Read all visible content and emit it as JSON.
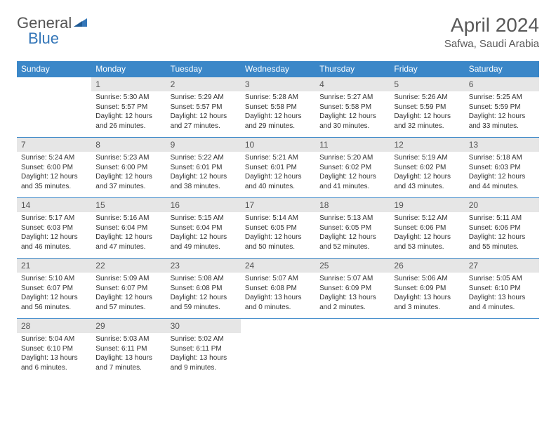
{
  "logo": {
    "text_general": "General",
    "text_blue": "Blue"
  },
  "title": "April 2024",
  "location": "Safwa, Saudi Arabia",
  "colors": {
    "header_bg": "#3b87c8",
    "header_text": "#ffffff",
    "daynum_bg": "#e6e6e6",
    "border": "#3b87c8",
    "logo_gray": "#555555",
    "logo_blue": "#3476b8"
  },
  "day_headers": [
    "Sunday",
    "Monday",
    "Tuesday",
    "Wednesday",
    "Thursday",
    "Friday",
    "Saturday"
  ],
  "weeks": [
    [
      null,
      {
        "n": "1",
        "sr": "5:30 AM",
        "ss": "5:57 PM",
        "dl": "12 hours and 26 minutes."
      },
      {
        "n": "2",
        "sr": "5:29 AM",
        "ss": "5:57 PM",
        "dl": "12 hours and 27 minutes."
      },
      {
        "n": "3",
        "sr": "5:28 AM",
        "ss": "5:58 PM",
        "dl": "12 hours and 29 minutes."
      },
      {
        "n": "4",
        "sr": "5:27 AM",
        "ss": "5:58 PM",
        "dl": "12 hours and 30 minutes."
      },
      {
        "n": "5",
        "sr": "5:26 AM",
        "ss": "5:59 PM",
        "dl": "12 hours and 32 minutes."
      },
      {
        "n": "6",
        "sr": "5:25 AM",
        "ss": "5:59 PM",
        "dl": "12 hours and 33 minutes."
      }
    ],
    [
      {
        "n": "7",
        "sr": "5:24 AM",
        "ss": "6:00 PM",
        "dl": "12 hours and 35 minutes."
      },
      {
        "n": "8",
        "sr": "5:23 AM",
        "ss": "6:00 PM",
        "dl": "12 hours and 37 minutes."
      },
      {
        "n": "9",
        "sr": "5:22 AM",
        "ss": "6:01 PM",
        "dl": "12 hours and 38 minutes."
      },
      {
        "n": "10",
        "sr": "5:21 AM",
        "ss": "6:01 PM",
        "dl": "12 hours and 40 minutes."
      },
      {
        "n": "11",
        "sr": "5:20 AM",
        "ss": "6:02 PM",
        "dl": "12 hours and 41 minutes."
      },
      {
        "n": "12",
        "sr": "5:19 AM",
        "ss": "6:02 PM",
        "dl": "12 hours and 43 minutes."
      },
      {
        "n": "13",
        "sr": "5:18 AM",
        "ss": "6:03 PM",
        "dl": "12 hours and 44 minutes."
      }
    ],
    [
      {
        "n": "14",
        "sr": "5:17 AM",
        "ss": "6:03 PM",
        "dl": "12 hours and 46 minutes."
      },
      {
        "n": "15",
        "sr": "5:16 AM",
        "ss": "6:04 PM",
        "dl": "12 hours and 47 minutes."
      },
      {
        "n": "16",
        "sr": "5:15 AM",
        "ss": "6:04 PM",
        "dl": "12 hours and 49 minutes."
      },
      {
        "n": "17",
        "sr": "5:14 AM",
        "ss": "6:05 PM",
        "dl": "12 hours and 50 minutes."
      },
      {
        "n": "18",
        "sr": "5:13 AM",
        "ss": "6:05 PM",
        "dl": "12 hours and 52 minutes."
      },
      {
        "n": "19",
        "sr": "5:12 AM",
        "ss": "6:06 PM",
        "dl": "12 hours and 53 minutes."
      },
      {
        "n": "20",
        "sr": "5:11 AM",
        "ss": "6:06 PM",
        "dl": "12 hours and 55 minutes."
      }
    ],
    [
      {
        "n": "21",
        "sr": "5:10 AM",
        "ss": "6:07 PM",
        "dl": "12 hours and 56 minutes."
      },
      {
        "n": "22",
        "sr": "5:09 AM",
        "ss": "6:07 PM",
        "dl": "12 hours and 57 minutes."
      },
      {
        "n": "23",
        "sr": "5:08 AM",
        "ss": "6:08 PM",
        "dl": "12 hours and 59 minutes."
      },
      {
        "n": "24",
        "sr": "5:07 AM",
        "ss": "6:08 PM",
        "dl": "13 hours and 0 minutes."
      },
      {
        "n": "25",
        "sr": "5:07 AM",
        "ss": "6:09 PM",
        "dl": "13 hours and 2 minutes."
      },
      {
        "n": "26",
        "sr": "5:06 AM",
        "ss": "6:09 PM",
        "dl": "13 hours and 3 minutes."
      },
      {
        "n": "27",
        "sr": "5:05 AM",
        "ss": "6:10 PM",
        "dl": "13 hours and 4 minutes."
      }
    ],
    [
      {
        "n": "28",
        "sr": "5:04 AM",
        "ss": "6:10 PM",
        "dl": "13 hours and 6 minutes."
      },
      {
        "n": "29",
        "sr": "5:03 AM",
        "ss": "6:11 PM",
        "dl": "13 hours and 7 minutes."
      },
      {
        "n": "30",
        "sr": "5:02 AM",
        "ss": "6:11 PM",
        "dl": "13 hours and 9 minutes."
      },
      null,
      null,
      null,
      null
    ]
  ],
  "labels": {
    "sunrise": "Sunrise:",
    "sunset": "Sunset:",
    "daylight": "Daylight:"
  }
}
